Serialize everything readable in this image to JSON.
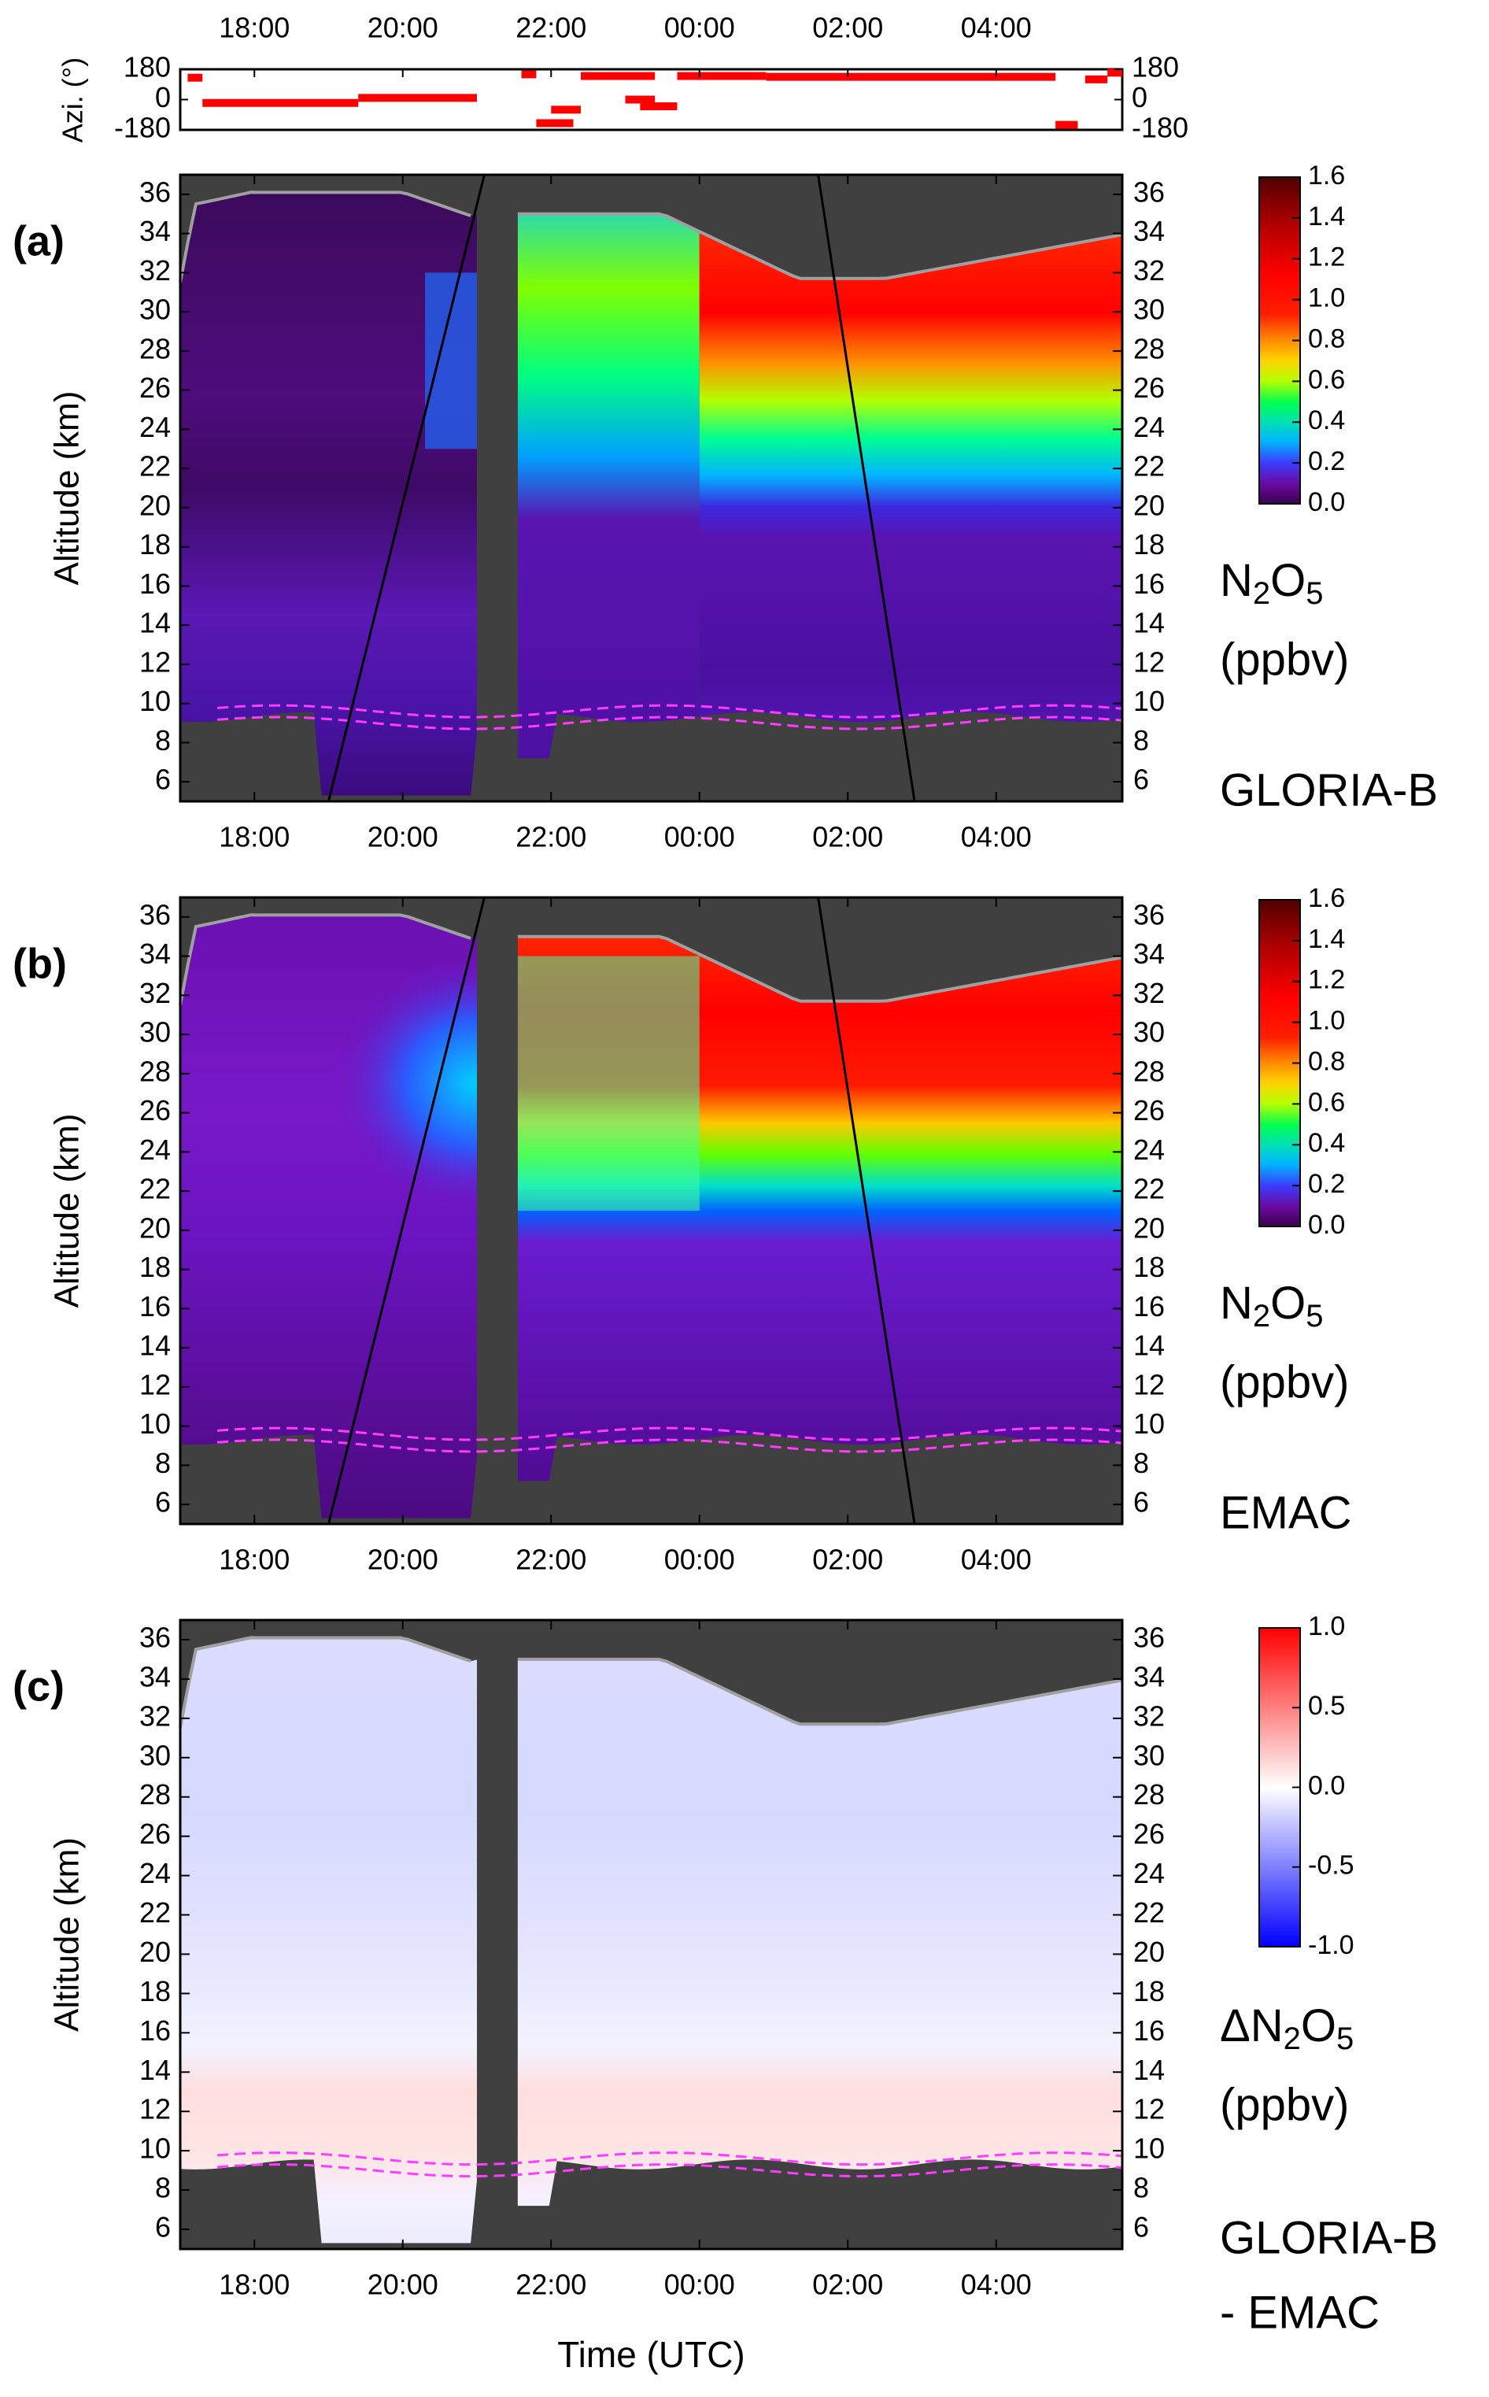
{
  "figure": {
    "time_axis_label": "Time (UTC)",
    "altitude_axis_label": "Altitude (km)",
    "azimuth_axis_label": "Azi. (°)"
  },
  "chart_data": [
    {
      "type": "scatter",
      "panel": "azimuth",
      "ylabel": "Azi. (°)",
      "ylim": [
        -180,
        180
      ],
      "yticks": [
        "180",
        "0",
        "-180"
      ],
      "xticks": [
        "18:00",
        "20:00",
        "22:00",
        "00:00",
        "02:00",
        "04:00"
      ],
      "marker_color": "#ff0000",
      "segments": [
        {
          "x": [
            17.1,
            17.3
          ],
          "y": 130
        },
        {
          "x": [
            17.3,
            19.4
          ],
          "y": -20
        },
        {
          "x": [
            19.4,
            21.0
          ],
          "y": 10
        },
        {
          "x": [
            21.6,
            21.8
          ],
          "y": 150
        },
        {
          "x": [
            21.8,
            22.3
          ],
          "y": -140
        },
        {
          "x": [
            22.0,
            22.4
          ],
          "y": -60
        },
        {
          "x": [
            22.4,
            23.4
          ],
          "y": 140
        },
        {
          "x": [
            23.0,
            23.4
          ],
          "y": 0
        },
        {
          "x": [
            23.2,
            23.7
          ],
          "y": -40
        },
        {
          "x": [
            23.7,
            24.9
          ],
          "y": 140
        },
        {
          "x": [
            24.9,
            28.8
          ],
          "y": 135
        },
        {
          "x": [
            28.8,
            29.1
          ],
          "y": -150
        },
        {
          "x": [
            29.2,
            29.5
          ],
          "y": 120
        },
        {
          "x": [
            29.5,
            29.7
          ],
          "y": 160
        }
      ]
    },
    {
      "type": "heatmap",
      "panel": "a",
      "label": "(a)",
      "quantity_sub": [
        "N",
        "2",
        "O",
        "5"
      ],
      "units": "(ppbv)",
      "source": "GLORIA-B",
      "ylabel": "Altitude (km)",
      "ylim": [
        5,
        37
      ],
      "yticks": [
        "6",
        "8",
        "10",
        "12",
        "14",
        "16",
        "18",
        "20",
        "22",
        "24",
        "26",
        "28",
        "30",
        "32",
        "34",
        "36"
      ],
      "xticks": [
        "18:00",
        "20:00",
        "22:00",
        "00:00",
        "02:00",
        "04:00"
      ],
      "colorbar": {
        "min": 0.0,
        "max": 1.6,
        "ticks": [
          "0.0",
          "0.2",
          "0.4",
          "0.6",
          "0.8",
          "1.0",
          "1.2",
          "1.4",
          "1.6"
        ],
        "colormap": "rainbow"
      }
    },
    {
      "type": "heatmap",
      "panel": "b",
      "label": "(b)",
      "quantity_sub": [
        "N",
        "2",
        "O",
        "5"
      ],
      "units": "(ppbv)",
      "source": "EMAC",
      "ylabel": "Altitude (km)",
      "ylim": [
        5,
        37
      ],
      "yticks": [
        "6",
        "8",
        "10",
        "12",
        "14",
        "16",
        "18",
        "20",
        "22",
        "24",
        "26",
        "28",
        "30",
        "32",
        "34",
        "36"
      ],
      "xticks": [
        "18:00",
        "20:00",
        "22:00",
        "00:00",
        "02:00",
        "04:00"
      ],
      "colorbar": {
        "min": 0.0,
        "max": 1.6,
        "ticks": [
          "0.0",
          "0.2",
          "0.4",
          "0.6",
          "0.8",
          "1.0",
          "1.2",
          "1.4",
          "1.6"
        ],
        "colormap": "rainbow"
      }
    },
    {
      "type": "heatmap",
      "panel": "c",
      "label": "(c)",
      "quantity_sub": [
        "ΔN",
        "2",
        "O",
        "5"
      ],
      "units": "(ppbv)",
      "source": "GLORIA-B",
      "source2": "- EMAC",
      "ylabel": "Altitude (km)",
      "ylim": [
        5,
        37
      ],
      "yticks": [
        "6",
        "8",
        "10",
        "12",
        "14",
        "16",
        "18",
        "20",
        "22",
        "24",
        "26",
        "28",
        "30",
        "32",
        "34",
        "36"
      ],
      "xticks": [
        "18:00",
        "20:00",
        "22:00",
        "00:00",
        "02:00",
        "04:00"
      ],
      "xlabel": "Time (UTC)",
      "colorbar": {
        "min": -1.0,
        "max": 1.0,
        "ticks": [
          "-1.0",
          "-0.5",
          "0.0",
          "0.5",
          "1.0"
        ],
        "colormap": "blue-white-red"
      }
    }
  ]
}
